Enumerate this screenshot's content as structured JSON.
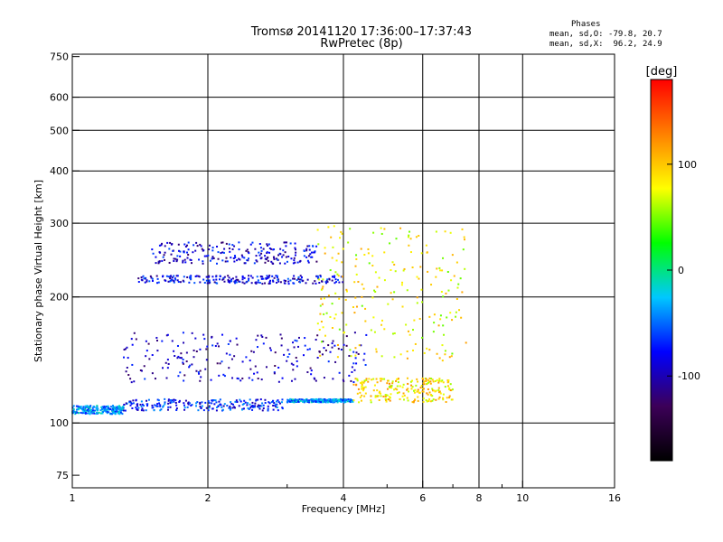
{
  "chart_data": {
    "type": "scatter",
    "title": "Tromsø 20141120 17:36:00–17:37:43",
    "subtitle": "RwPretec (8p)",
    "xlabel": "Frequency [MHz]",
    "ylabel": "Stationary phase Virtual Height [km]",
    "x_scale": "log",
    "y_scale": "log",
    "xlim": [
      1,
      16
    ],
    "ylim": [
      70,
      760
    ],
    "x_ticks": [
      1,
      2,
      4,
      6,
      8,
      10,
      16
    ],
    "x_minor_ticks": [
      3,
      5,
      7,
      9
    ],
    "y_ticks": [
      75,
      100,
      200,
      300,
      400,
      500,
      600,
      750
    ],
    "grid": true,
    "colorbar": {
      "label": "[deg]",
      "range": [
        -180,
        180
      ],
      "ticks": [
        100,
        0,
        -100
      ],
      "colors": [
        "#000000",
        "#3c0058",
        "#0000ff",
        "#00c8ff",
        "#00ff00",
        "#ffff00",
        "#ff8000",
        "#ff0000"
      ]
    },
    "phase_stats": {
      "header": "Phases",
      "line_o": "mean, sd,O: -79.8, 20.7",
      "line_x": "mean, sd,X:  96.2, 24.9"
    },
    "traces": [
      {
        "x_range": [
          1.0,
          1.3
        ],
        "y_range": [
          105,
          110
        ],
        "phase": -40
      },
      {
        "x_range": [
          1.3,
          3.0
        ],
        "y_range": [
          107,
          114
        ],
        "phase": -70
      },
      {
        "x_range": [
          3.0,
          4.2
        ],
        "y_range": [
          112,
          114
        ],
        "phase": -40
      },
      {
        "x_range": [
          4.2,
          7.0
        ],
        "y_range": [
          112,
          128
        ],
        "phase": 90
      },
      {
        "x_range": [
          1.4,
          4.0
        ],
        "y_range": [
          215,
          225
        ],
        "phase": -85
      },
      {
        "x_range": [
          1.5,
          3.5
        ],
        "y_range": [
          240,
          270
        ],
        "phase": -90
      },
      {
        "x_range": [
          1.3,
          4.5
        ],
        "y_range": [
          125,
          165
        ],
        "phase": -95
      },
      {
        "x_range": [
          3.5,
          7.5
        ],
        "y_range": [
          140,
          300
        ],
        "phase": 80
      }
    ]
  }
}
